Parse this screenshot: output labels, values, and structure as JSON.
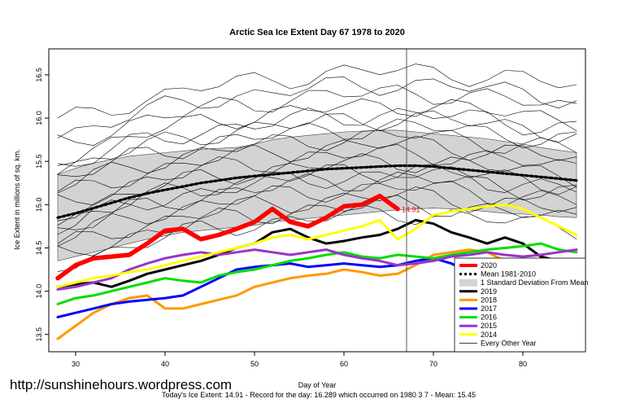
{
  "chart_data": {
    "type": "line",
    "title": "Arctic Sea Ice Extent Day 67 1978 to 2020",
    "xlabel": "Day of Year",
    "ylabel": "Ice Extent in millions of sq. km.",
    "xlim": [
      27,
      87
    ],
    "ylim": [
      13.3,
      16.8
    ],
    "x_ticks": [
      30,
      40,
      50,
      60,
      70,
      80
    ],
    "y_ticks": [
      "13.5",
      "14.0",
      "14.5",
      "15.0",
      "15.5",
      "16.0",
      "16.5"
    ],
    "marker_day": 67,
    "current_label": "14.91",
    "x": [
      28,
      30,
      32,
      34,
      36,
      38,
      40,
      42,
      44,
      46,
      48,
      50,
      52,
      54,
      56,
      58,
      60,
      62,
      64,
      66,
      68,
      70,
      72,
      74,
      76,
      78,
      80,
      82,
      84,
      86
    ],
    "band": {
      "name": "1 Standard Deviation From Mean",
      "color": "#d3d3d3",
      "upper": [
        15.35,
        15.42,
        15.48,
        15.52,
        15.56,
        15.58,
        15.6,
        15.62,
        15.64,
        15.65,
        15.66,
        15.7,
        15.75,
        15.78,
        15.8,
        15.82,
        15.84,
        15.85,
        15.86,
        15.86,
        15.84,
        15.82,
        15.8,
        15.78,
        15.76,
        15.73,
        15.7,
        15.66,
        15.63,
        15.6
      ],
      "lower": [
        14.35,
        14.4,
        14.45,
        14.5,
        14.55,
        14.6,
        14.64,
        14.68,
        14.7,
        14.72,
        14.74,
        14.76,
        14.8,
        14.82,
        14.84,
        14.86,
        14.88,
        14.9,
        14.92,
        14.94,
        14.95,
        14.96,
        14.95,
        14.94,
        14.92,
        14.9,
        14.89,
        14.88,
        14.86,
        14.85
      ]
    },
    "mean": {
      "name": "Mean 1981-2010",
      "color": "#000000",
      "values": [
        14.85,
        14.9,
        14.96,
        15.02,
        15.08,
        15.13,
        15.17,
        15.21,
        15.25,
        15.28,
        15.31,
        15.33,
        15.35,
        15.37,
        15.39,
        15.41,
        15.42,
        15.43,
        15.44,
        15.45,
        15.45,
        15.44,
        15.42,
        15.4,
        15.38,
        15.36,
        15.34,
        15.32,
        15.3,
        15.28
      ]
    },
    "series": [
      {
        "name": "2020",
        "color": "#ff0000",
        "values": [
          14.15,
          14.3,
          14.38,
          14.4,
          14.42,
          14.55,
          14.7,
          14.72,
          14.6,
          14.65,
          14.72,
          14.8,
          14.95,
          14.8,
          14.75,
          14.85,
          14.98,
          15.0,
          15.1,
          14.95,
          null,
          null,
          null,
          null,
          null,
          null,
          null,
          null,
          null,
          null
        ]
      },
      {
        "name": "2019",
        "color": "#000000",
        "values": [
          14.05,
          14.08,
          14.1,
          14.05,
          14.12,
          14.2,
          14.25,
          14.3,
          14.35,
          14.42,
          14.5,
          14.55,
          14.68,
          14.72,
          14.62,
          14.55,
          14.58,
          14.62,
          14.65,
          14.72,
          14.82,
          14.78,
          14.68,
          14.62,
          14.55,
          14.62,
          14.55,
          14.4,
          14.35,
          14.28
        ]
      },
      {
        "name": "2018",
        "color": "#ff9900",
        "values": [
          13.45,
          13.6,
          13.75,
          13.85,
          13.92,
          13.95,
          13.8,
          13.8,
          13.85,
          13.9,
          13.95,
          14.05,
          14.1,
          14.15,
          14.18,
          14.2,
          14.25,
          14.22,
          14.18,
          14.2,
          14.3,
          14.42,
          14.45,
          14.48,
          14.45,
          14.35,
          14.32,
          14.3,
          14.25,
          14.22
        ]
      },
      {
        "name": "2017",
        "color": "#0000ff",
        "values": [
          13.7,
          13.75,
          13.8,
          13.85,
          13.88,
          13.9,
          13.92,
          13.95,
          14.05,
          14.15,
          14.25,
          14.28,
          14.3,
          14.32,
          14.28,
          14.3,
          14.32,
          14.3,
          14.28,
          14.3,
          14.35,
          14.38,
          14.32,
          14.22,
          14.18,
          14.15,
          14.12,
          14.15,
          14.18,
          14.2
        ]
      },
      {
        "name": "2016",
        "color": "#00dd00",
        "values": [
          13.85,
          13.92,
          13.95,
          14.0,
          14.05,
          14.1,
          14.15,
          14.12,
          14.1,
          14.18,
          14.22,
          14.25,
          14.3,
          14.35,
          14.38,
          14.42,
          14.45,
          14.4,
          14.38,
          14.42,
          14.4,
          14.38,
          14.42,
          14.45,
          14.48,
          14.5,
          14.52,
          14.55,
          14.48,
          14.45
        ]
      },
      {
        "name": "2015",
        "color": "#9933cc",
        "values": [
          14.02,
          14.05,
          14.1,
          14.15,
          14.25,
          14.32,
          14.38,
          14.42,
          14.45,
          14.42,
          14.45,
          14.48,
          14.45,
          14.42,
          14.45,
          14.48,
          14.42,
          14.38,
          14.35,
          14.3,
          14.32,
          14.35,
          14.4,
          14.42,
          14.45,
          14.42,
          14.4,
          14.42,
          14.45,
          14.48
        ]
      },
      {
        "name": "2014",
        "color": "#ffff00",
        "values": [
          14.05,
          14.1,
          14.15,
          14.18,
          14.22,
          14.25,
          14.3,
          14.35,
          14.4,
          14.45,
          14.5,
          14.55,
          14.62,
          14.65,
          14.6,
          14.65,
          14.7,
          14.75,
          14.82,
          14.6,
          14.72,
          14.88,
          14.92,
          14.95,
          14.98,
          15.0,
          14.95,
          14.85,
          14.75,
          14.65
        ]
      }
    ],
    "legend": {
      "position": "bottom-right",
      "entries": [
        "2020",
        "Mean 1981-2010",
        "1 Standard Deviation From Mean",
        "2019",
        "2018",
        "2017",
        "2016",
        "2015",
        "2014",
        "Every Other Year"
      ]
    }
  },
  "watermark": "http://sunshinehours.wordpress.com",
  "footer_note": "Today's Ice Extent: 14.91  - Record for the day: 16.289 which occurred on 1980 3 7  - Mean: 15.45"
}
